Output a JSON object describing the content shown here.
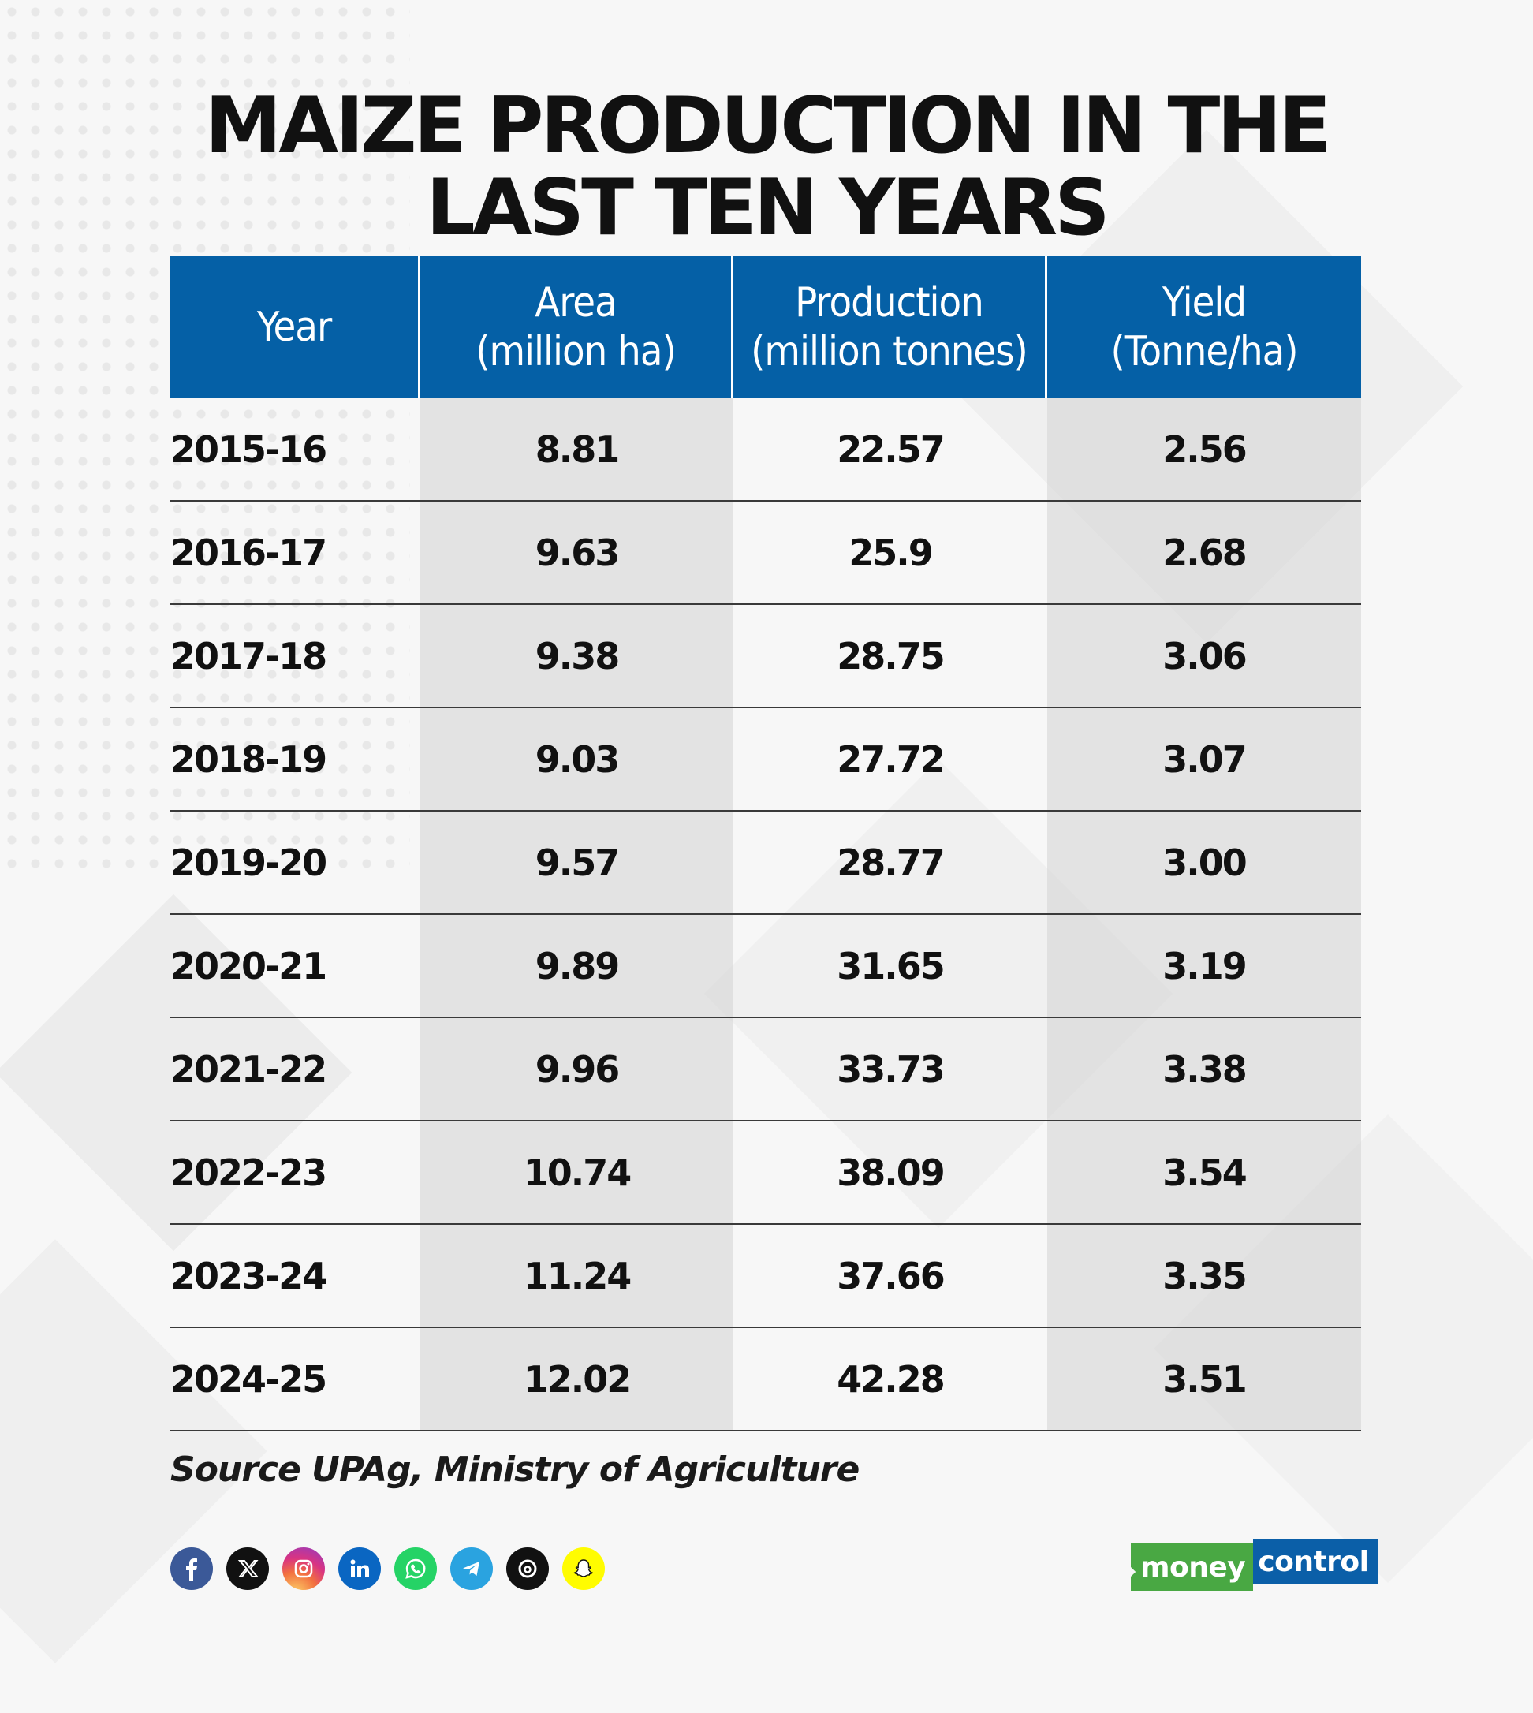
{
  "title_line1": "MAIZE PRODUCTION IN THE",
  "title_line2": "LAST TEN YEARS",
  "chart_data": {
    "type": "table",
    "title": "MAIZE PRODUCTION IN THE LAST TEN YEARS",
    "columns": [
      "Year",
      "Area\n(million ha)",
      "Production\n(million tonnes)",
      "Yield\n(Tonne/ha)"
    ],
    "rows": [
      [
        "2015-16",
        "8.81",
        "22.57",
        "2.56"
      ],
      [
        "2016-17",
        "9.63",
        "25.9",
        "2.68"
      ],
      [
        "2017-18",
        "9.38",
        "28.75",
        "3.06"
      ],
      [
        "2018-19",
        "9.03",
        "27.72",
        "3.07"
      ],
      [
        "2019-20",
        "9.57",
        "28.77",
        "3.00"
      ],
      [
        "2020-21",
        "9.89",
        "31.65",
        "3.19"
      ],
      [
        "2021-22",
        "9.96",
        "33.73",
        "3.38"
      ],
      [
        "2022-23",
        "10.74",
        "38.09",
        "3.54"
      ],
      [
        "2023-24",
        "11.24",
        "37.66",
        "3.35"
      ],
      [
        "2024-25",
        "12.02",
        "42.28",
        "3.51"
      ]
    ]
  },
  "source": "Source UPAg, Ministry of Agriculture",
  "socials": [
    {
      "icon": "facebook-icon",
      "color": "#3b5998"
    },
    {
      "icon": "x-icon",
      "color": "#111111"
    },
    {
      "icon": "instagram-icon",
      "color": "#e1306c"
    },
    {
      "icon": "linkedin-icon",
      "color": "#0a66c2"
    },
    {
      "icon": "whatsapp-icon",
      "color": "#25d366"
    },
    {
      "icon": "telegram-icon",
      "color": "#2aa3e0"
    },
    {
      "icon": "threads-icon",
      "color": "#111111"
    },
    {
      "icon": "snapchat-icon",
      "color": "#fffc00"
    }
  ],
  "logo": {
    "part1": "money",
    "part2": "control",
    "green": "#49a843",
    "blue": "#0b5fa8"
  },
  "colors": {
    "header": "#0560a6"
  }
}
